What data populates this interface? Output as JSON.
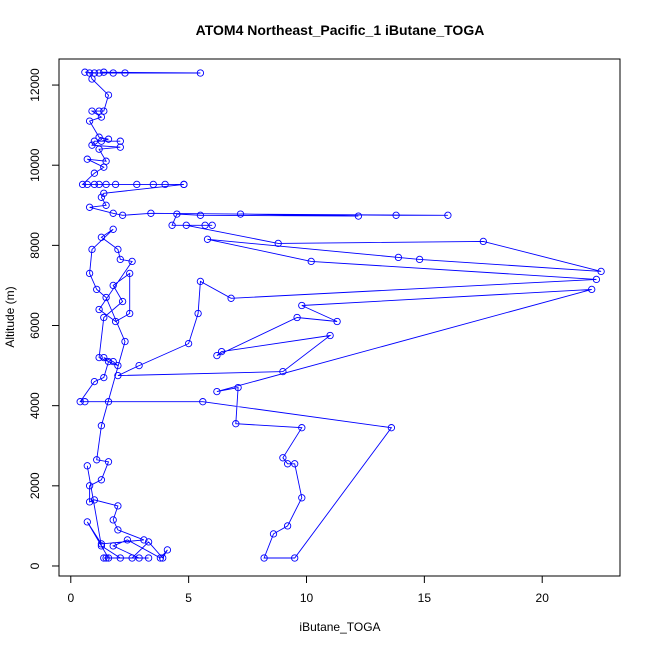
{
  "chart_data": {
    "type": "line",
    "title": "ATOM4 Northeast_Pacific_1 iButane_TOGA",
    "xlabel": "iButane_TOGA",
    "ylabel": "Altitude (m)",
    "xlim": [
      -0.5,
      23.3
    ],
    "ylim": [
      -250,
      12650
    ],
    "xticks": [
      0,
      5,
      10,
      15,
      20
    ],
    "yticks": [
      0,
      2000,
      4000,
      6000,
      8000,
      10000,
      12000
    ],
    "grid": false,
    "marker": "open-circle",
    "color": "#0000ff",
    "series": [
      {
        "values": [
          [
            0.6,
            12320
          ],
          [
            1.2,
            12300
          ],
          [
            1.4,
            12320
          ],
          [
            5.5,
            12300
          ],
          [
            2.3,
            12300
          ],
          [
            1.8,
            12300
          ],
          [
            1.0,
            12300
          ],
          [
            0.8,
            12300
          ],
          [
            0.9,
            12150
          ],
          [
            1.6,
            11750
          ],
          [
            1.4,
            11350
          ],
          [
            1.2,
            11350
          ],
          [
            0.9,
            11350
          ],
          [
            1.3,
            11200
          ],
          [
            0.8,
            11100
          ],
          [
            1.2,
            10700
          ],
          [
            1.6,
            10650
          ],
          [
            1.3,
            10600
          ],
          [
            2.1,
            10600
          ],
          [
            1.0,
            10600
          ],
          [
            0.9,
            10500
          ],
          [
            2.1,
            10450
          ],
          [
            1.2,
            10400
          ],
          [
            1.5,
            10100
          ],
          [
            0.7,
            10150
          ],
          [
            1.4,
            9950
          ],
          [
            1.0,
            9800
          ],
          [
            0.5,
            9520
          ],
          [
            4.8,
            9520
          ],
          [
            1.0,
            9520
          ],
          [
            3.5,
            9520
          ],
          [
            1.5,
            9520
          ],
          [
            2.8,
            9520
          ],
          [
            1.2,
            9520
          ],
          [
            4.0,
            9520
          ],
          [
            0.7,
            9520
          ],
          [
            1.9,
            9520
          ],
          [
            4.8,
            9520
          ],
          [
            1.4,
            9300
          ],
          [
            1.3,
            9200
          ],
          [
            1.5,
            9000
          ],
          [
            0.8,
            8950
          ],
          [
            1.8,
            8800
          ],
          [
            2.2,
            8750
          ],
          [
            3.4,
            8800
          ],
          [
            13.8,
            8750
          ],
          [
            16.0,
            8750
          ],
          [
            7.2,
            8780
          ],
          [
            12.2,
            8730
          ],
          [
            5.5,
            8750
          ],
          [
            4.5,
            8780
          ],
          [
            4.3,
            8500
          ],
          [
            5.7,
            8500
          ],
          [
            6.0,
            8500
          ],
          [
            4.9,
            8500
          ],
          [
            8.8,
            8050
          ],
          [
            17.5,
            8100
          ],
          [
            22.5,
            7350
          ],
          [
            14.8,
            7650
          ],
          [
            13.9,
            7700
          ],
          [
            5.8,
            8150
          ],
          [
            10.2,
            7600
          ],
          [
            22.3,
            7150
          ],
          [
            6.8,
            6680
          ],
          [
            5.5,
            7100
          ],
          [
            5.4,
            6300
          ],
          [
            5.0,
            5550
          ],
          [
            2.9,
            5000
          ],
          [
            2.0,
            4750
          ],
          [
            9.0,
            4850
          ],
          [
            11.0,
            5750
          ],
          [
            6.4,
            5350
          ],
          [
            6.2,
            5250
          ],
          [
            9.6,
            6200
          ],
          [
            11.3,
            6100
          ],
          [
            9.8,
            6500
          ],
          [
            22.1,
            6900
          ],
          [
            6.2,
            4350
          ],
          [
            7.1,
            4450
          ],
          [
            7.0,
            3550
          ],
          [
            9.8,
            3450
          ],
          [
            9.0,
            2700
          ],
          [
            9.2,
            2550
          ],
          [
            9.5,
            2550
          ],
          [
            9.8,
            1700
          ],
          [
            9.2,
            1000
          ],
          [
            8.6,
            800
          ],
          [
            8.2,
            200
          ],
          [
            9.5,
            200
          ],
          [
            13.6,
            3450
          ],
          [
            5.6,
            4100
          ],
          [
            1.6,
            4100
          ],
          [
            0.6,
            4100
          ],
          [
            0.4,
            4100
          ],
          [
            1.0,
            4600
          ],
          [
            1.4,
            4700
          ],
          [
            1.6,
            5100
          ],
          [
            1.4,
            5200
          ],
          [
            1.8,
            5100
          ],
          [
            2.0,
            5000
          ],
          [
            1.2,
            5200
          ],
          [
            1.4,
            6200
          ],
          [
            2.2,
            6600
          ],
          [
            1.8,
            7000
          ],
          [
            2.5,
            7300
          ],
          [
            2.5,
            6300
          ],
          [
            1.9,
            6100
          ],
          [
            1.2,
            6400
          ],
          [
            2.6,
            7600
          ],
          [
            2.1,
            7650
          ],
          [
            2.0,
            7900
          ],
          [
            1.3,
            8200
          ],
          [
            1.8,
            8400
          ],
          [
            0.9,
            7900
          ],
          [
            0.8,
            7300
          ],
          [
            1.1,
            6900
          ],
          [
            1.5,
            6700
          ],
          [
            2.3,
            5600
          ],
          [
            1.3,
            3500
          ],
          [
            1.1,
            2650
          ],
          [
            1.6,
            2600
          ],
          [
            1.3,
            2150
          ],
          [
            0.8,
            2000
          ],
          [
            0.8,
            1600
          ],
          [
            1.0,
            1650
          ],
          [
            2.0,
            1500
          ],
          [
            1.8,
            1150
          ],
          [
            2.0,
            900
          ],
          [
            3.1,
            650
          ],
          [
            1.3,
            550
          ],
          [
            0.7,
            1100
          ],
          [
            1.6,
            200
          ],
          [
            1.5,
            200
          ],
          [
            1.4,
            200
          ],
          [
            2.6,
            200
          ],
          [
            3.3,
            600
          ],
          [
            3.9,
            200
          ],
          [
            4.1,
            400
          ],
          [
            3.8,
            200
          ],
          [
            2.4,
            650
          ],
          [
            1.8,
            500
          ],
          [
            2.9,
            200
          ],
          [
            3.3,
            200
          ],
          [
            2.1,
            200
          ],
          [
            1.3,
            500
          ],
          [
            0.7,
            2500
          ]
        ]
      }
    ]
  }
}
